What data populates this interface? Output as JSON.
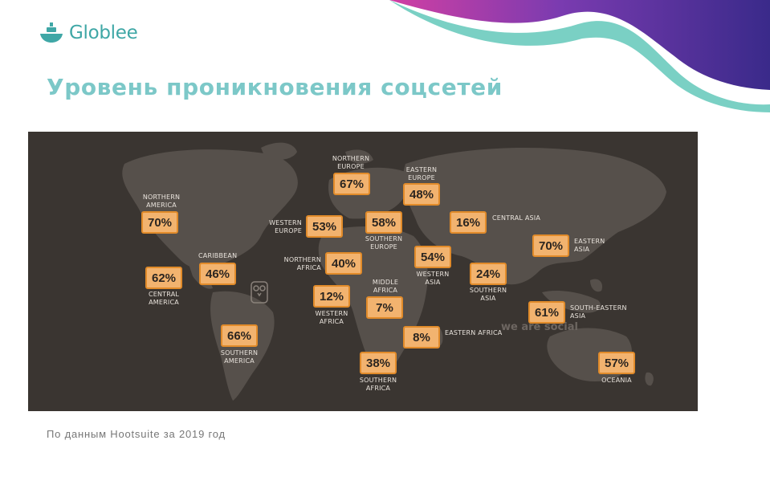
{
  "logo": {
    "text": "Globlee",
    "icon": "ship-icon"
  },
  "title": "Уровень проникновения соцсетей",
  "map": {
    "watermark": "we are social",
    "watermark_icon": "owl-icon",
    "regions": [
      {
        "name": "NORTHERN AMERICA",
        "value": "70%"
      },
      {
        "name": "CARIBBEAN",
        "value": "46%"
      },
      {
        "name": "CENTRAL AMERICA",
        "value": "62%"
      },
      {
        "name": "SOUTHERN AMERICA",
        "value": "66%"
      },
      {
        "name": "NORTHERN EUROPE",
        "value": "67%"
      },
      {
        "name": "WESTERN EUROPE",
        "value": "53%"
      },
      {
        "name": "SOUTHERN EUROPE",
        "value": "58%"
      },
      {
        "name": "EASTERN EUROPE",
        "value": "48%"
      },
      {
        "name": "NORTHERN AFRICA",
        "value": "40%"
      },
      {
        "name": "WESTERN AFRICA",
        "value": "12%"
      },
      {
        "name": "MIDDLE AFRICA",
        "value": "7%"
      },
      {
        "name": "EASTERN AFRICA",
        "value": "8%"
      },
      {
        "name": "SOUTHERN AFRICA",
        "value": "38%"
      },
      {
        "name": "WESTERN ASIA",
        "value": "54%"
      },
      {
        "name": "CENTRAL ASIA",
        "value": "16%"
      },
      {
        "name": "SOUTHERN ASIA",
        "value": "24%"
      },
      {
        "name": "EASTERN ASIA",
        "value": "70%"
      },
      {
        "name": "SOUTH-EASTERN ASIA",
        "value": "61%"
      },
      {
        "name": "OCEANIA",
        "value": "57%"
      }
    ]
  },
  "source": "По данным Hootsuite  за 2019 год",
  "colors": {
    "accent": "#7cc8c8",
    "logo": "#3fa7a6",
    "map_background": "#3a3531",
    "land": "#56504b",
    "value_box": "#f2b36f",
    "value_box_border": "#e18b2a",
    "wave_purple": "#6a2fa8",
    "wave_teal": "#6cc8c0"
  }
}
